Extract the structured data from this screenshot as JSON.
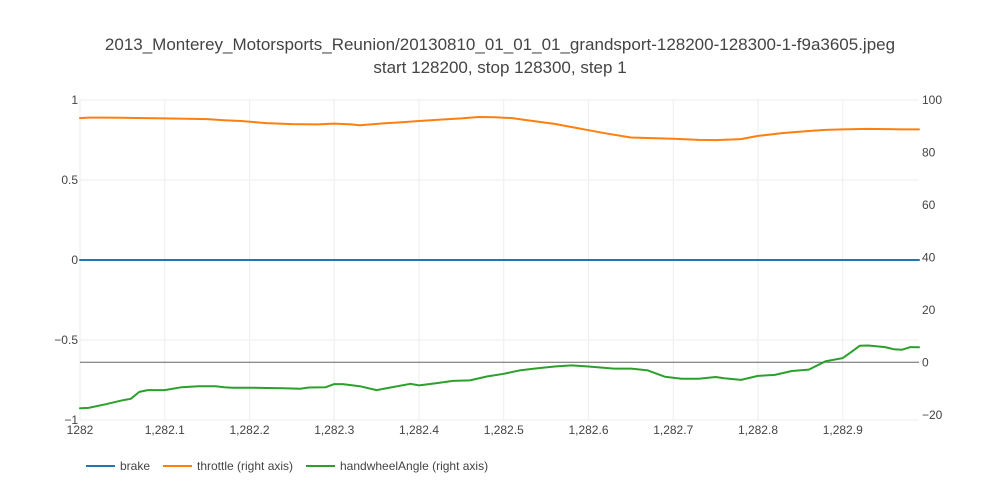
{
  "chart_data": {
    "type": "line",
    "title_line1": "2013_Monterey_Motorsports_Reunion/20130810_01_01_01_grandsport-128200-128300-1-f9a3605.jpeg",
    "title_line2": "start 128200, stop 128300, step 1",
    "xlim": [
      1282.0,
      1282.99
    ],
    "ylim_left": [
      -1,
      1
    ],
    "ylim_right": [
      -22,
      100
    ],
    "x_ticks": [
      1282.0,
      1282.1,
      1282.2,
      1282.3,
      1282.4,
      1282.5,
      1282.6,
      1282.7,
      1282.8,
      1282.9
    ],
    "x_tick_labels": [
      "1282",
      "1,282.1",
      "1,282.2",
      "1,282.3",
      "1,282.4",
      "1,282.5",
      "1,282.6",
      "1,282.7",
      "1,282.8",
      "1,282.9"
    ],
    "y_left_ticks": [
      1,
      0.5,
      0,
      -0.5,
      -1
    ],
    "y_left_tick_labels": [
      "1",
      "0.5",
      "0",
      "−0.5",
      "−1"
    ],
    "y_right_ticks": [
      100,
      80,
      60,
      40,
      20,
      0,
      -20
    ],
    "y_right_tick_labels": [
      "100",
      "80",
      "60",
      "40",
      "20",
      "0",
      "−20"
    ],
    "grid": true,
    "legend_position": "bottom-left",
    "series": [
      {
        "name": "brake",
        "axis": "left",
        "color": "#1f77b4",
        "x": [
          1282.0,
          1282.99
        ],
        "y": [
          0,
          0
        ]
      },
      {
        "name": "throttle (right axis)",
        "axis": "right",
        "color": "#ff7f0e",
        "x": [
          1282.0,
          1282.01,
          1282.03,
          1282.05,
          1282.1,
          1282.15,
          1282.17,
          1282.19,
          1282.22,
          1282.25,
          1282.28,
          1282.3,
          1282.32,
          1282.33,
          1282.36,
          1282.38,
          1282.4,
          1282.43,
          1282.45,
          1282.47,
          1282.49,
          1282.51,
          1282.53,
          1282.56,
          1282.58,
          1282.6,
          1282.62,
          1282.65,
          1282.7,
          1282.73,
          1282.75,
          1282.78,
          1282.8,
          1282.83,
          1282.86,
          1282.88,
          1282.9,
          1282.93,
          1282.95,
          1282.97,
          1282.99
        ],
        "y": [
          93.1,
          93.3,
          93.3,
          93.2,
          93.0,
          92.7,
          92.3,
          92.0,
          91.2,
          90.8,
          90.7,
          91.0,
          90.7,
          90.4,
          91.1,
          91.5,
          92.0,
          92.6,
          93.0,
          93.5,
          93.4,
          93.1,
          92.2,
          90.9,
          89.7,
          88.5,
          87.3,
          85.7,
          85.2,
          84.8,
          84.7,
          85.1,
          86.3,
          87.4,
          88.2,
          88.6,
          88.8,
          89.0,
          88.9,
          88.8,
          88.8
        ]
      },
      {
        "name": "handwheelAngle (right axis)",
        "axis": "right",
        "color": "#2ca02c",
        "x": [
          1282.0,
          1282.01,
          1282.03,
          1282.05,
          1282.06,
          1282.07,
          1282.08,
          1282.1,
          1282.12,
          1282.14,
          1282.16,
          1282.17,
          1282.18,
          1282.2,
          1282.22,
          1282.24,
          1282.26,
          1282.27,
          1282.29,
          1282.3,
          1282.31,
          1282.33,
          1282.35,
          1282.36,
          1282.39,
          1282.4,
          1282.42,
          1282.44,
          1282.46,
          1282.48,
          1282.5,
          1282.52,
          1282.54,
          1282.56,
          1282.58,
          1282.6,
          1282.63,
          1282.65,
          1282.67,
          1282.69,
          1282.71,
          1282.73,
          1282.75,
          1282.76,
          1282.78,
          1282.8,
          1282.82,
          1282.84,
          1282.86,
          1282.88,
          1282.9,
          1282.91,
          1282.92,
          1282.93,
          1282.95,
          1282.96,
          1282.97,
          1282.98,
          1282.99
        ],
        "y": [
          -17.5,
          -17.4,
          -16.0,
          -14.5,
          -13.9,
          -11.3,
          -10.6,
          -10.6,
          -9.5,
          -9.1,
          -9.1,
          -9.5,
          -9.7,
          -9.7,
          -9.8,
          -9.9,
          -10.1,
          -9.6,
          -9.5,
          -8.3,
          -8.3,
          -9.1,
          -10.6,
          -10.0,
          -8.2,
          -8.8,
          -8.0,
          -7.1,
          -6.9,
          -5.4,
          -4.4,
          -3.0,
          -2.3,
          -1.6,
          -1.2,
          -1.6,
          -2.4,
          -2.4,
          -3.1,
          -5.5,
          -6.3,
          -6.3,
          -5.6,
          -6.1,
          -6.7,
          -5.2,
          -4.8,
          -3.3,
          -2.8,
          0.4,
          1.6,
          3.9,
          6.3,
          6.4,
          5.8,
          5.0,
          4.8,
          5.8,
          5.7
        ]
      }
    ]
  }
}
